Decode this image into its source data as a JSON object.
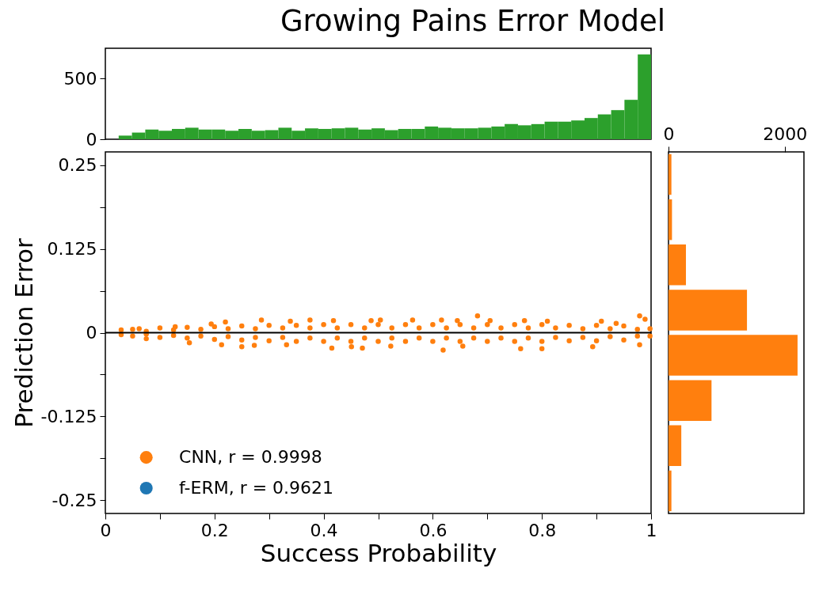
{
  "chart_data": [
    {
      "type": "bar",
      "title": "Growing Pains Error Model",
      "color": "#2ca02c",
      "categories": [
        null,
        null,
        null,
        null,
        null,
        null,
        null,
        null,
        null,
        null,
        null,
        null,
        null,
        null,
        null,
        null,
        null,
        null,
        null,
        null,
        null,
        null,
        null,
        null,
        null,
        null,
        null,
        null,
        null,
        null,
        null,
        null,
        null,
        null,
        null,
        null,
        null,
        null,
        null,
        null
      ],
      "values": [
        30,
        55,
        80,
        70,
        85,
        95,
        80,
        80,
        70,
        85,
        70,
        75,
        95,
        70,
        90,
        85,
        90,
        95,
        80,
        90,
        75,
        85,
        85,
        105,
        95,
        90,
        90,
        95,
        105,
        125,
        115,
        125,
        145,
        145,
        155,
        175,
        205,
        240,
        325,
        700
      ],
      "ylim": [
        0,
        750
      ],
      "yticks": [
        0,
        500
      ],
      "tick_labels": "y"
    },
    {
      "type": "scatter",
      "xlabel": "Success Probability",
      "ylabel": "Prediction Error",
      "marker": "circle",
      "legend": "bottom left",
      "series": [
        {
          "name": "CNN, r = 0.9998",
          "color": "#ff7f0e",
          "x": [
            0.029,
            0.062,
            0.128,
            0.194,
            0.22,
            0.286,
            0.339,
            0.375,
            0.418,
            0.487,
            0.504,
            0.563,
            0.616,
            0.645,
            0.682,
            0.705,
            0.768,
            0.81,
            0.909,
            0.936,
            0.979,
            0.989,
            0.998,
            0.029,
            0.075,
            0.154,
            0.213,
            0.25,
            0.273,
            0.332,
            0.415,
            0.451,
            0.471,
            0.523,
            0.619,
            0.655,
            0.761,
            0.8,
            0.893,
            0.979,
            0.998,
            0.05,
            0.1,
            0.15,
            0.2,
            0.25,
            0.3,
            0.35,
            0.4,
            0.45,
            0.5,
            0.55,
            0.6,
            0.65,
            0.7,
            0.75,
            0.8,
            0.85,
            0.9,
            0.95,
            0.05,
            0.1,
            0.15,
            0.2,
            0.25,
            0.3,
            0.35,
            0.4,
            0.45,
            0.5,
            0.55,
            0.6,
            0.65,
            0.7,
            0.75,
            0.8,
            0.85,
            0.9,
            0.95,
            0.075,
            0.125,
            0.175,
            0.225,
            0.275,
            0.325,
            0.375,
            0.425,
            0.475,
            0.525,
            0.575,
            0.625,
            0.675,
            0.725,
            0.775,
            0.825,
            0.875,
            0.925,
            0.975,
            0.075,
            0.125,
            0.175,
            0.225,
            0.275,
            0.325,
            0.375,
            0.425,
            0.475,
            0.525,
            0.575,
            0.625,
            0.675,
            0.725,
            0.775,
            0.825,
            0.875,
            0.925,
            0.975
          ],
          "values": [
            0.004,
            0.006,
            0.009,
            0.013,
            0.016,
            0.019,
            0.017,
            0.019,
            0.018,
            0.018,
            0.019,
            0.019,
            0.019,
            0.018,
            0.025,
            0.018,
            0.018,
            0.017,
            0.017,
            0.014,
            0.025,
            0.02,
            0.006,
            -0.003,
            -0.009,
            -0.015,
            -0.018,
            -0.021,
            -0.019,
            -0.018,
            -0.023,
            -0.021,
            -0.023,
            -0.02,
            -0.026,
            -0.02,
            -0.024,
            -0.024,
            -0.021,
            -0.018,
            -0.005,
            0.005,
            0.007,
            0.008,
            0.009,
            0.01,
            0.011,
            0.011,
            0.012,
            0.012,
            0.012,
            0.012,
            0.012,
            0.012,
            0.012,
            0.012,
            0.012,
            0.011,
            0.011,
            0.01,
            -0.005,
            -0.007,
            -0.008,
            -0.01,
            -0.011,
            -0.012,
            -0.013,
            -0.013,
            -0.013,
            -0.013,
            -0.013,
            -0.013,
            -0.013,
            -0.013,
            -0.013,
            -0.013,
            -0.012,
            -0.012,
            -0.011,
            0.002,
            0.004,
            0.005,
            0.006,
            0.006,
            0.007,
            0.007,
            0.007,
            0.007,
            0.007,
            0.007,
            0.007,
            0.007,
            0.007,
            0.007,
            0.007,
            0.006,
            0.006,
            0.005,
            -0.002,
            -0.004,
            -0.005,
            -0.006,
            -0.007,
            -0.007,
            -0.008,
            -0.008,
            -0.008,
            -0.008,
            -0.008,
            -0.008,
            -0.008,
            -0.008,
            -0.008,
            -0.007,
            -0.007,
            -0.006,
            -0.005
          ]
        },
        {
          "name": "f-ERM, r = 0.9621",
          "color": "#1f77b4"
        }
      ],
      "xlim": [
        0,
        1
      ],
      "xticks": [
        0,
        {
          "value": 0.1,
          "label": null
        },
        0.2,
        {
          "value": 0.3,
          "label": null
        },
        0.4,
        {
          "value": 0.5,
          "label": null
        },
        0.6,
        {
          "value": 0.7,
          "label": null
        },
        0.8,
        {
          "value": 0.9,
          "label": null
        },
        1
      ],
      "ylim": [
        -0.27,
        0.27
      ],
      "yticks": [
        -0.25,
        {
          "value": -0.1875,
          "label": null
        },
        -0.125,
        {
          "value": -0.0625,
          "label": null
        },
        0,
        {
          "value": 0.0625,
          "label": null
        },
        0.125,
        {
          "value": 0.1875,
          "label": null
        },
        0.25
      ],
      "ref_lines": [
        {
          "axis": "y",
          "value": 0,
          "color": "#000000"
        }
      ]
    },
    {
      "type": "bar",
      "orientation": "horizontal",
      "color": "#ff7f0e",
      "categories": [
        null,
        null,
        null,
        null,
        null,
        null,
        null,
        null
      ],
      "values": [
        50,
        60,
        300,
        1350,
        2220,
        740,
        220,
        50
      ],
      "xlim": [
        0,
        2330
      ],
      "xticks": [
        0,
        2000
      ],
      "tick_labels": "x"
    }
  ]
}
